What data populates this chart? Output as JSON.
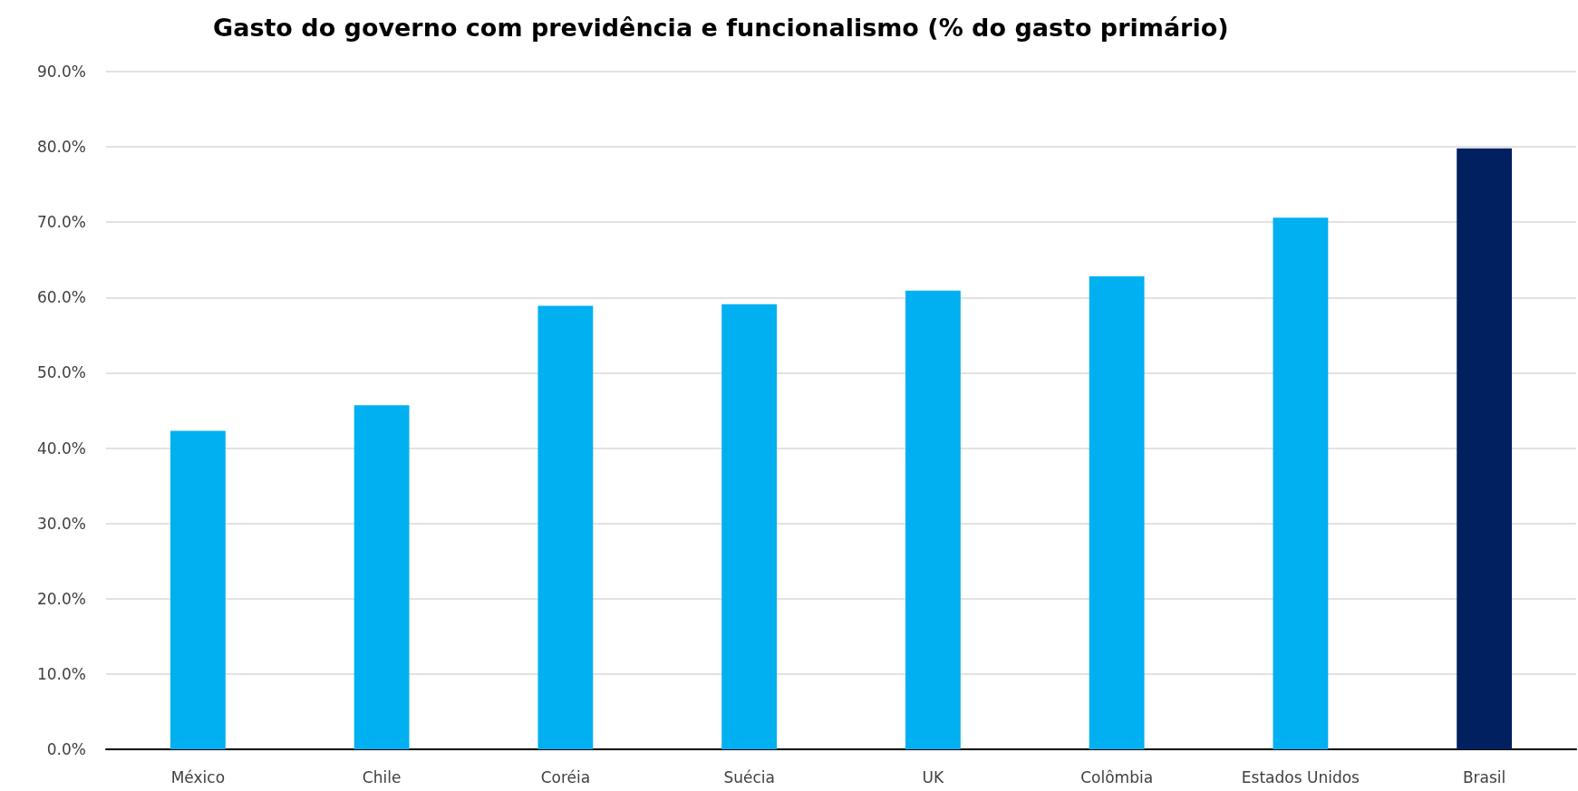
{
  "chart_data": {
    "type": "bar",
    "title": "Gasto do governo com previdência e funcionalismo (% do gasto primário)",
    "categories": [
      "México",
      "Chile",
      "Coréia",
      "Suécia",
      "UK",
      "Colômbia",
      "Estados Unidos",
      "Brasil"
    ],
    "values": [
      42.3,
      45.7,
      58.9,
      59.1,
      60.9,
      62.8,
      70.6,
      79.8
    ],
    "colors": [
      "#00b0f0",
      "#00b0f0",
      "#00b0f0",
      "#00b0f0",
      "#00b0f0",
      "#00b0f0",
      "#00b0f0",
      "#002060"
    ],
    "ylim": [
      0,
      90
    ],
    "yticks": [
      {
        "value": 0,
        "label": "0.0%"
      },
      {
        "value": 10,
        "label": "10.0%"
      },
      {
        "value": 20,
        "label": "20.0%"
      },
      {
        "value": 30,
        "label": "30.0%"
      },
      {
        "value": 40,
        "label": "40.0%"
      },
      {
        "value": 50,
        "label": "50.0%"
      },
      {
        "value": 60,
        "label": "60.0%"
      },
      {
        "value": 70,
        "label": "70.0%"
      },
      {
        "value": 80,
        "label": "80.0%"
      },
      {
        "value": 90,
        "label": "90.0%"
      }
    ],
    "grid": "y"
  }
}
